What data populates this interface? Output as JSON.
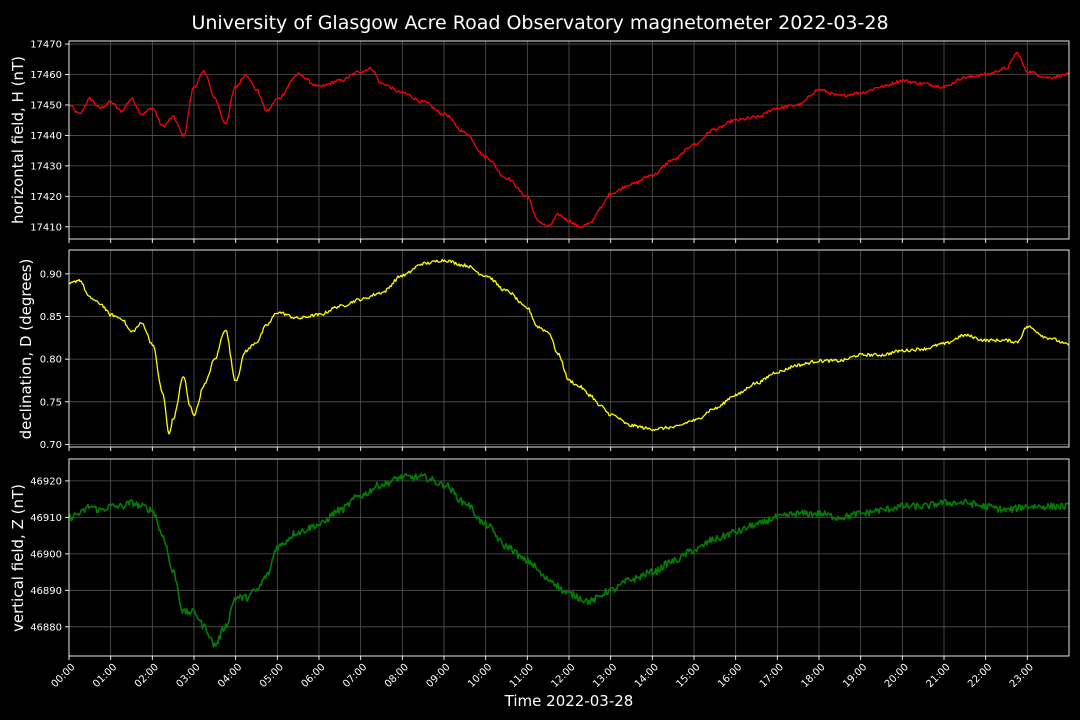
{
  "title": "University of Glasgow Acre Road Observatory magnetometer 2022-03-28",
  "chart_data": [
    {
      "type": "line",
      "ylabel": "horizontal field, H (nT)",
      "ylim": [
        17406,
        17471
      ],
      "yticks": [
        17410,
        17420,
        17430,
        17440,
        17450,
        17460,
        17470
      ],
      "decimals": 0,
      "color": "#ff0000",
      "x_hours": [
        0,
        0.25,
        0.5,
        0.75,
        1,
        1.25,
        1.5,
        1.75,
        2,
        2.25,
        2.5,
        2.75,
        3,
        3.25,
        3.5,
        3.75,
        4,
        4.25,
        4.5,
        4.75,
        5,
        5.5,
        6,
        6.5,
        7,
        7.25,
        7.5,
        8,
        8.5,
        9,
        9.5,
        10,
        10.5,
        11,
        11.25,
        11.5,
        11.75,
        12,
        12.25,
        12.5,
        12.75,
        13,
        13.5,
        14,
        14.5,
        15,
        15.5,
        16,
        16.5,
        17,
        17.5,
        18,
        18.5,
        19,
        19.5,
        20,
        20.5,
        21,
        21.5,
        22,
        22.5,
        22.75,
        23,
        23.5,
        24
      ],
      "values": [
        17450,
        17447,
        17452,
        17449,
        17451,
        17448,
        17452,
        17447,
        17449,
        17443,
        17446,
        17440,
        17456,
        17461,
        17452,
        17444,
        17456,
        17460,
        17455,
        17448,
        17452,
        17460,
        17456,
        17458,
        17461,
        17462,
        17457,
        17454,
        17451,
        17447,
        17441,
        17433,
        17426,
        17420,
        17412,
        17410,
        17414,
        17412,
        17410,
        17411,
        17416,
        17421,
        17424,
        17427,
        17432,
        17437,
        17442,
        17445,
        17446,
        17449,
        17450,
        17455,
        17453,
        17454,
        17456,
        17458,
        17457,
        17456,
        17459,
        17460,
        17462,
        17467,
        17461,
        17459,
        17460
      ]
    },
    {
      "type": "line",
      "ylabel": "declination, D (degrees)",
      "ylim": [
        0.697,
        0.928
      ],
      "yticks": [
        0.7,
        0.75,
        0.8,
        0.85,
        0.9
      ],
      "decimals": 2,
      "color": "#ffff00",
      "x_hours": [
        0,
        0.25,
        0.5,
        0.75,
        1,
        1.25,
        1.5,
        1.75,
        2,
        2.25,
        2.4,
        2.5,
        2.75,
        2.9,
        3,
        3.25,
        3.5,
        3.75,
        4,
        4.25,
        4.5,
        4.75,
        5,
        5.5,
        6,
        6.5,
        7,
        7.5,
        8,
        8.5,
        9,
        9.5,
        10,
        10.5,
        11,
        11.25,
        11.5,
        11.75,
        12,
        12.25,
        12.5,
        12.75,
        13,
        13.5,
        14,
        14.5,
        15,
        15.5,
        16,
        16.5,
        17,
        17.5,
        18,
        18.5,
        19,
        19.5,
        20,
        20.5,
        21,
        21.5,
        22,
        22.5,
        22.75,
        23,
        23.5,
        24
      ],
      "values": [
        0.888,
        0.893,
        0.872,
        0.865,
        0.852,
        0.848,
        0.832,
        0.842,
        0.818,
        0.76,
        0.712,
        0.73,
        0.78,
        0.745,
        0.735,
        0.77,
        0.8,
        0.835,
        0.775,
        0.81,
        0.82,
        0.84,
        0.855,
        0.848,
        0.852,
        0.862,
        0.87,
        0.878,
        0.898,
        0.912,
        0.916,
        0.91,
        0.898,
        0.88,
        0.86,
        0.838,
        0.832,
        0.805,
        0.775,
        0.768,
        0.758,
        0.745,
        0.735,
        0.722,
        0.718,
        0.72,
        0.728,
        0.742,
        0.758,
        0.772,
        0.785,
        0.793,
        0.798,
        0.798,
        0.805,
        0.805,
        0.81,
        0.812,
        0.818,
        0.828,
        0.822,
        0.822,
        0.82,
        0.838,
        0.825,
        0.817
      ]
    },
    {
      "type": "line",
      "ylabel": "vertical field, Z (nT)",
      "ylim": [
        46872,
        46926
      ],
      "yticks": [
        46880,
        46890,
        46900,
        46910,
        46920
      ],
      "decimals": 0,
      "color": "#008000",
      "x_hours": [
        0,
        0.25,
        0.5,
        0.75,
        1,
        1.25,
        1.5,
        1.75,
        2,
        2.25,
        2.5,
        2.75,
        3,
        3.25,
        3.5,
        3.75,
        4,
        4.25,
        4.5,
        4.75,
        5,
        5.5,
        6,
        6.5,
        7,
        7.5,
        8,
        8.5,
        9,
        9.5,
        10,
        10.5,
        11,
        11.5,
        12,
        12.5,
        13,
        13.5,
        14,
        14.5,
        15,
        15.5,
        16,
        16.5,
        17,
        17.5,
        18,
        18.5,
        19,
        19.5,
        20,
        20.5,
        21,
        21.5,
        22,
        22.5,
        23,
        23.5,
        24
      ],
      "values": [
        46910,
        46911,
        46913,
        46912,
        46913,
        46913,
        46914,
        46913,
        46912,
        46905,
        46895,
        46884,
        46884,
        46880,
        46875,
        46880,
        46888,
        46888,
        46890,
        46894,
        46902,
        46906,
        46908,
        46912,
        46916,
        46919,
        46921,
        46921,
        46919,
        46914,
        46908,
        46902,
        46898,
        46893,
        46889,
        46887,
        46890,
        46893,
        46895,
        46898,
        46901,
        46904,
        46906,
        46908,
        46910,
        46911,
        46911,
        46910,
        46911,
        46912,
        46913,
        46913,
        46914,
        46914,
        46913,
        46912,
        46913,
        46913,
        46913
      ]
    }
  ],
  "xlabel": "Time 2022-03-28",
  "x_tick_labels": [
    "00:00",
    "01:00",
    "02:00",
    "03:00",
    "04:00",
    "05:00",
    "06:00",
    "07:00",
    "08:00",
    "09:00",
    "10:00",
    "11:00",
    "12:00",
    "13:00",
    "14:00",
    "15:00",
    "16:00",
    "17:00",
    "18:00",
    "19:00",
    "20:00",
    "21:00",
    "22:00",
    "23:00"
  ],
  "xlim_hours": [
    0,
    24
  ],
  "grid": true,
  "background": "#000000"
}
